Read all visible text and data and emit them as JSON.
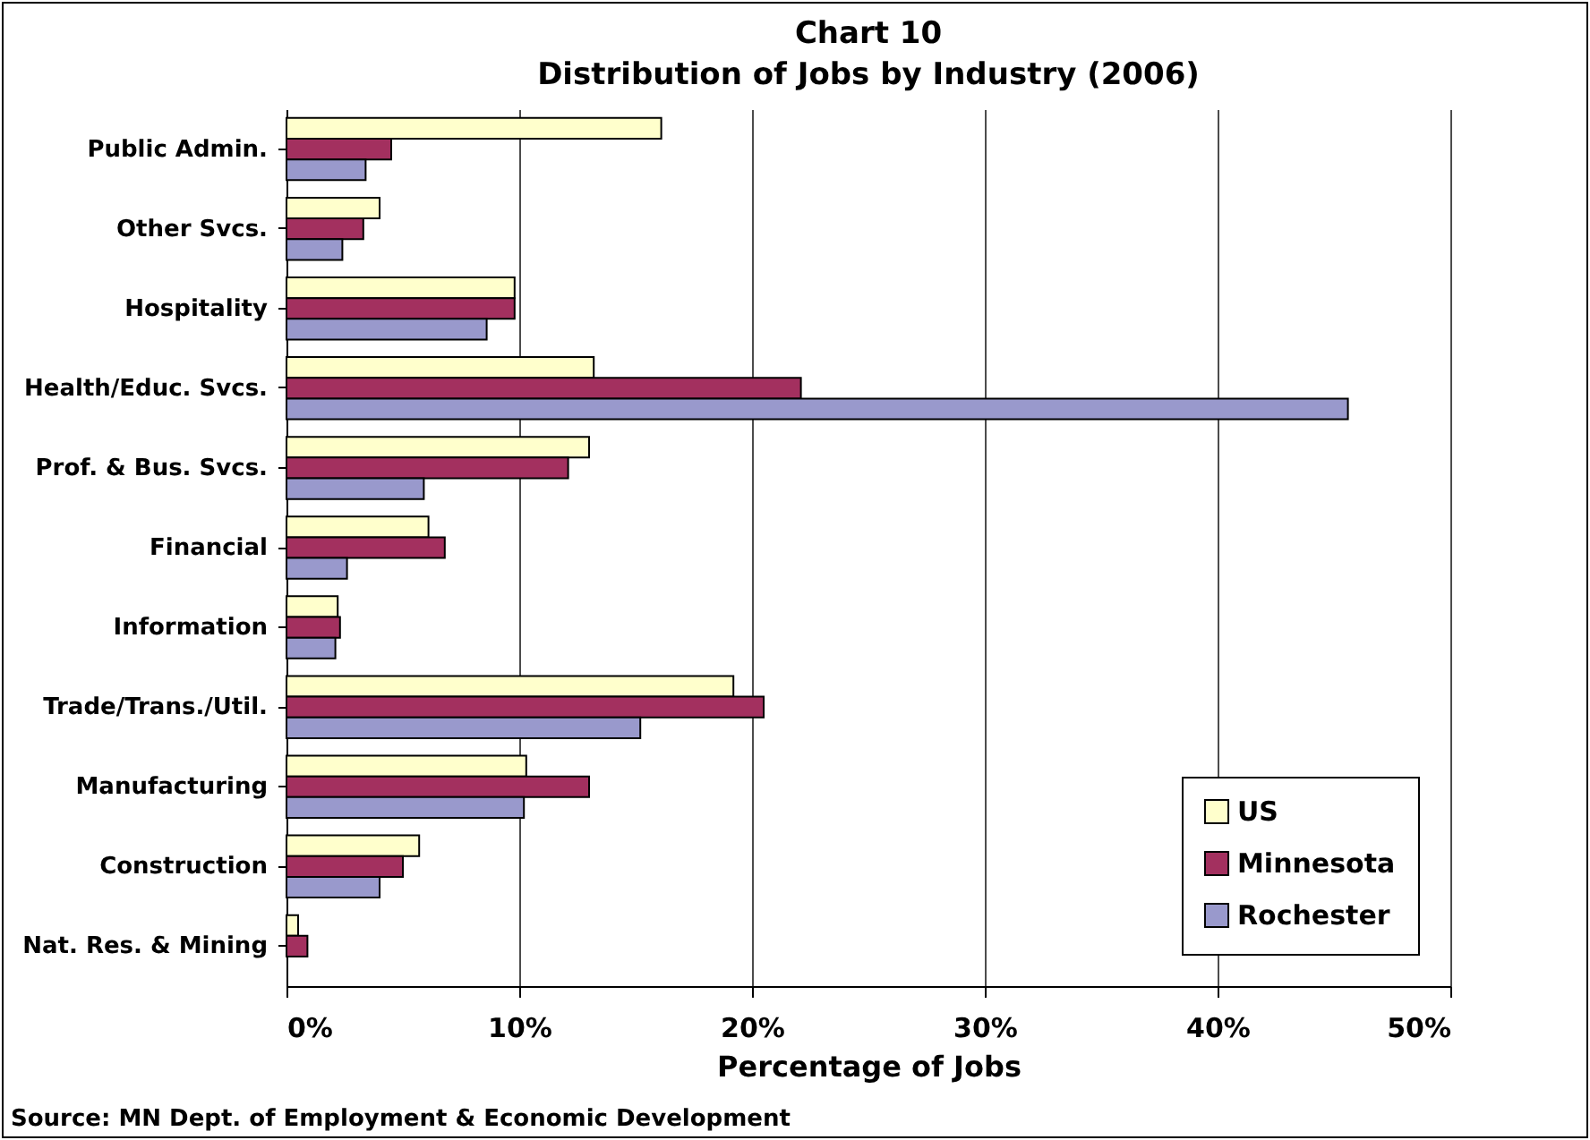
{
  "chart_data": {
    "type": "bar",
    "orientation": "horizontal",
    "title": "Chart 10",
    "subtitle": "Distribution of Jobs by Industry (2006)",
    "xlabel": "Percentage of Jobs",
    "categories": [
      "Public Admin.",
      "Other Svcs.",
      "Hospitality",
      "Health/Educ. Svcs.",
      "Prof. & Bus. Svcs.",
      "Financial",
      "Information",
      "Trade/Trans./Util.",
      "Manufacturing",
      "Construction",
      "Nat. Res. & Mining"
    ],
    "series": [
      {
        "name": "US",
        "color": "#ffffcc",
        "values": [
          16.1,
          4.0,
          9.8,
          13.2,
          13.0,
          6.1,
          2.2,
          19.2,
          10.3,
          5.7,
          0.5
        ]
      },
      {
        "name": "Minnesota",
        "color": "#a3305f",
        "values": [
          4.5,
          3.3,
          9.8,
          22.1,
          12.1,
          6.8,
          2.3,
          20.5,
          13.0,
          5.0,
          0.9
        ]
      },
      {
        "name": "Rochester",
        "color": "#9999cc",
        "values": [
          3.4,
          2.4,
          8.6,
          45.6,
          5.9,
          2.6,
          2.1,
          15.2,
          10.2,
          4.0,
          null
        ]
      }
    ],
    "xlim": [
      0,
      50
    ],
    "xticks": [
      {
        "value": 0,
        "label": "0%"
      },
      {
        "value": 10,
        "label": "10%"
      },
      {
        "value": 20,
        "label": "20%"
      },
      {
        "value": 30,
        "label": "30%"
      },
      {
        "value": 40,
        "label": "40%"
      },
      {
        "value": 50,
        "label": "50%"
      }
    ],
    "grid": "x",
    "legend": "bottom right",
    "annotations": [
      "Source: MN Dept. of Employment & Economic Development"
    ]
  }
}
